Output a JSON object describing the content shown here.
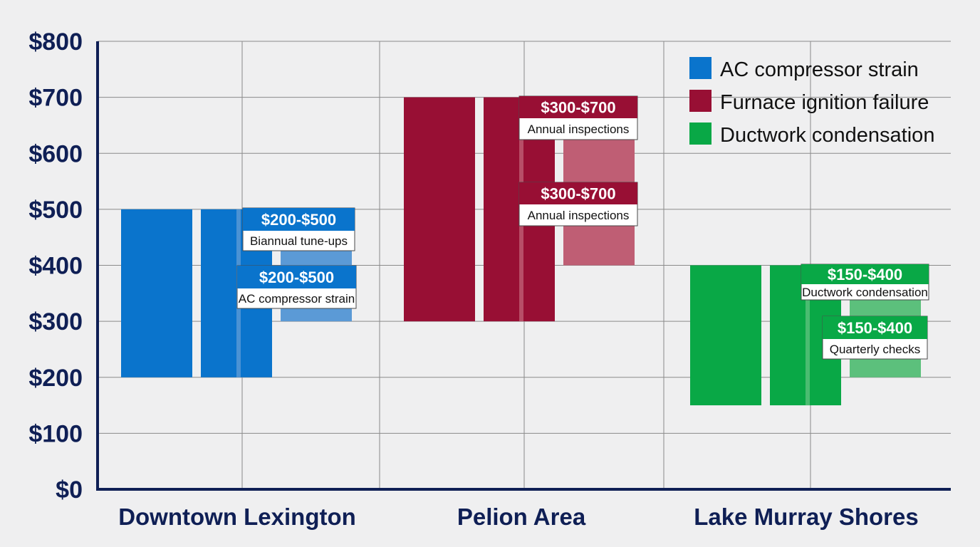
{
  "chart_data": {
    "type": "bar",
    "title": "",
    "xlabel": "",
    "ylabel": "",
    "ylim": [
      0,
      800
    ],
    "y_tick_values": [
      0,
      100,
      200,
      300,
      400,
      500,
      600,
      700,
      800
    ],
    "y_tick_labels": [
      "$0",
      "$100",
      "$200",
      "$300",
      "$400",
      "$500",
      "$600",
      "$700",
      "$800"
    ],
    "grid": true,
    "legend_position": "top-right",
    "categories": [
      "Downtown Lexington",
      "Pelion Area",
      "Lake Murray Shores"
    ],
    "series": [
      {
        "name": "AC compressor strain",
        "color": "#0a74cc",
        "ranges": [
          [
            200,
            500
          ]
        ]
      },
      {
        "name": "Furnace ignition failure",
        "color": "#980f34",
        "ranges": [
          [
            300,
            700
          ]
        ]
      },
      {
        "name": "Ductwork condensation",
        "color": "#09a846",
        "ranges": [
          [
            150,
            400
          ]
        ]
      }
    ],
    "groups": [
      {
        "category": "Downtown Lexington",
        "color": "#0a74cc",
        "light_color": "#5b9ad6",
        "bars": [
          [
            200,
            500
          ],
          [
            200,
            500
          ],
          [
            300,
            500
          ]
        ],
        "annotations": [
          {
            "range": "$200-$500",
            "text": "Biannual tune-ups"
          },
          {
            "range": "$200-$500",
            "text": "AC compressor strain"
          }
        ]
      },
      {
        "category": "Pelion Area",
        "color": "#980f34",
        "light_color": "#bf5e74",
        "bars": [
          [
            300,
            700
          ],
          [
            300,
            700
          ],
          [
            400,
            700
          ]
        ],
        "annotations": [
          {
            "range": "$300-$700",
            "text": "Annual inspections"
          },
          {
            "range": "$300-$700",
            "text": "Annual inspections"
          }
        ]
      },
      {
        "category": "Lake Murray Shores",
        "color": "#09a846",
        "light_color": "#5cc07c",
        "bars": [
          [
            150,
            400
          ],
          [
            150,
            400
          ],
          [
            200,
            400
          ]
        ],
        "annotations": [
          {
            "range": "$150-$400",
            "text": "Ductwork condensation"
          },
          {
            "range": "$150-$400",
            "text": "Quarterly checks"
          }
        ]
      }
    ]
  }
}
